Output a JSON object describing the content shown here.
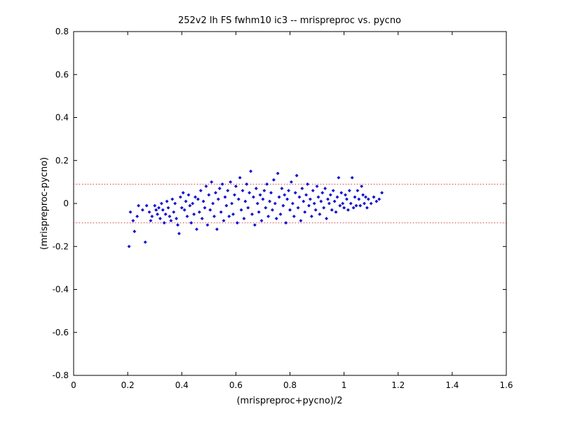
{
  "chart_data": {
    "type": "scatter",
    "title": "252v2 lh FS fwhm10 ic3 -- mrispreproc vs. pycno",
    "xlabel": "(mrispreproc+pycno)/2",
    "ylabel": "(mrispreproc-pycno)",
    "xlim": [
      0,
      1.6
    ],
    "ylim": [
      -0.8,
      0.8
    ],
    "xticks": [
      0,
      0.2,
      0.4,
      0.6,
      0.8,
      1,
      1.2,
      1.4,
      1.6
    ],
    "xtick_labels": [
      "0",
      "0.2",
      "0.4",
      "0.6",
      "0.8",
      "1",
      "1.2",
      "1.4",
      "1.6"
    ],
    "yticks": [
      -0.8,
      -0.6,
      -0.4,
      -0.2,
      0,
      0.2,
      0.4,
      0.6,
      0.8
    ],
    "ytick_labels": [
      "-0.8",
      "-0.6",
      "-0.4",
      "-0.2",
      "0",
      "0.2",
      "0.4",
      "0.6",
      "0.8"
    ],
    "grid": false,
    "legend": "none",
    "point_color": "#0000ff",
    "reference_line_color": "#ff0000",
    "reference_lines": [
      0.09,
      -0.09
    ],
    "points": [
      [
        0.205,
        -0.2
      ],
      [
        0.21,
        -0.04
      ],
      [
        0.22,
        -0.08
      ],
      [
        0.225,
        -0.13
      ],
      [
        0.235,
        -0.06
      ],
      [
        0.24,
        -0.01
      ],
      [
        0.255,
        -0.03
      ],
      [
        0.265,
        -0.18
      ],
      [
        0.27,
        -0.01
      ],
      [
        0.28,
        -0.04
      ],
      [
        0.285,
        -0.08
      ],
      [
        0.29,
        -0.06
      ],
      [
        0.3,
        -0.01
      ],
      [
        0.305,
        -0.03
      ],
      [
        0.31,
        -0.05
      ],
      [
        0.315,
        -0.02
      ],
      [
        0.32,
        -0.07
      ],
      [
        0.325,
        0.0
      ],
      [
        0.33,
        -0.03
      ],
      [
        0.335,
        -0.09
      ],
      [
        0.34,
        -0.05
      ],
      [
        0.345,
        0.01
      ],
      [
        0.35,
        -0.02
      ],
      [
        0.355,
        -0.06
      ],
      [
        0.36,
        -0.08
      ],
      [
        0.365,
        0.02
      ],
      [
        0.37,
        -0.04
      ],
      [
        0.375,
        0.0
      ],
      [
        0.38,
        -0.07
      ],
      [
        0.385,
        -0.1
      ],
      [
        0.39,
        -0.14
      ],
      [
        0.395,
        0.03
      ],
      [
        0.4,
        -0.02
      ],
      [
        0.405,
        0.05
      ],
      [
        0.41,
        -0.03
      ],
      [
        0.415,
        0.01
      ],
      [
        0.42,
        -0.06
      ],
      [
        0.425,
        0.04
      ],
      [
        0.43,
        -0.01
      ],
      [
        0.435,
        -0.09
      ],
      [
        0.44,
        0.0
      ],
      [
        0.445,
        -0.05
      ],
      [
        0.45,
        0.03
      ],
      [
        0.455,
        -0.12
      ],
      [
        0.46,
        0.02
      ],
      [
        0.465,
        -0.04
      ],
      [
        0.47,
        0.06
      ],
      [
        0.475,
        -0.07
      ],
      [
        0.48,
        0.01
      ],
      [
        0.485,
        -0.02
      ],
      [
        0.49,
        0.08
      ],
      [
        0.495,
        -0.1
      ],
      [
        0.5,
        0.04
      ],
      [
        0.505,
        -0.03
      ],
      [
        0.51,
        0.1
      ],
      [
        0.515,
        0.0
      ],
      [
        0.52,
        -0.06
      ],
      [
        0.525,
        0.05
      ],
      [
        0.53,
        -0.12
      ],
      [
        0.535,
        0.02
      ],
      [
        0.54,
        0.07
      ],
      [
        0.545,
        -0.04
      ],
      [
        0.55,
        0.09
      ],
      [
        0.555,
        -0.08
      ],
      [
        0.56,
        0.03
      ],
      [
        0.565,
        -0.01
      ],
      [
        0.57,
        0.06
      ],
      [
        0.575,
        -0.06
      ],
      [
        0.58,
        0.1
      ],
      [
        0.585,
        0.0
      ],
      [
        0.59,
        -0.05
      ],
      [
        0.595,
        0.04
      ],
      [
        0.6,
        0.08
      ],
      [
        0.605,
        -0.09
      ],
      [
        0.61,
        0.02
      ],
      [
        0.615,
        0.12
      ],
      [
        0.62,
        -0.03
      ],
      [
        0.625,
        0.06
      ],
      [
        0.63,
        -0.07
      ],
      [
        0.635,
        0.01
      ],
      [
        0.64,
        0.09
      ],
      [
        0.645,
        -0.02
      ],
      [
        0.65,
        0.05
      ],
      [
        0.655,
        0.15
      ],
      [
        0.66,
        -0.05
      ],
      [
        0.665,
        0.03
      ],
      [
        0.67,
        -0.1
      ],
      [
        0.675,
        0.07
      ],
      [
        0.68,
        0.0
      ],
      [
        0.685,
        -0.04
      ],
      [
        0.69,
        0.04
      ],
      [
        0.695,
        -0.08
      ],
      [
        0.7,
        0.02
      ],
      [
        0.705,
        0.06
      ],
      [
        0.71,
        -0.02
      ],
      [
        0.715,
        0.09
      ],
      [
        0.72,
        -0.06
      ],
      [
        0.725,
        0.01
      ],
      [
        0.73,
        0.05
      ],
      [
        0.735,
        -0.03
      ],
      [
        0.74,
        0.11
      ],
      [
        0.745,
        0.0
      ],
      [
        0.75,
        -0.07
      ],
      [
        0.755,
        0.14
      ],
      [
        0.76,
        0.03
      ],
      [
        0.765,
        -0.05
      ],
      [
        0.77,
        0.07
      ],
      [
        0.775,
        -0.01
      ],
      [
        0.78,
        0.04
      ],
      [
        0.785,
        -0.09
      ],
      [
        0.79,
        0.02
      ],
      [
        0.795,
        0.06
      ],
      [
        0.8,
        -0.03
      ],
      [
        0.805,
        0.1
      ],
      [
        0.81,
        0.0
      ],
      [
        0.815,
        -0.06
      ],
      [
        0.82,
        0.05
      ],
      [
        0.825,
        0.13
      ],
      [
        0.83,
        -0.02
      ],
      [
        0.835,
        0.03
      ],
      [
        0.84,
        -0.08
      ],
      [
        0.845,
        0.07
      ],
      [
        0.85,
        0.01
      ],
      [
        0.855,
        -0.04
      ],
      [
        0.86,
        0.04
      ],
      [
        0.865,
        0.09
      ],
      [
        0.87,
        -0.01
      ],
      [
        0.875,
        0.02
      ],
      [
        0.88,
        -0.06
      ],
      [
        0.885,
        0.06
      ],
      [
        0.89,
        0.0
      ],
      [
        0.895,
        -0.03
      ],
      [
        0.9,
        0.08
      ],
      [
        0.905,
        0.03
      ],
      [
        0.91,
        -0.05
      ],
      [
        0.915,
        0.01
      ],
      [
        0.92,
        0.05
      ],
      [
        0.925,
        -0.02
      ],
      [
        0.93,
        0.07
      ],
      [
        0.935,
        -0.07
      ],
      [
        0.94,
        0.02
      ],
      [
        0.945,
        0.0
      ],
      [
        0.95,
        0.04
      ],
      [
        0.955,
        -0.03
      ],
      [
        0.96,
        0.06
      ],
      [
        0.965,
        0.01
      ],
      [
        0.97,
        -0.04
      ],
      [
        0.975,
        0.03
      ],
      [
        0.98,
        0.12
      ],
      [
        0.985,
        -0.01
      ],
      [
        0.99,
        0.05
      ],
      [
        0.995,
        0.0
      ],
      [
        1.0,
        -0.02
      ],
      [
        1.005,
        0.04
      ],
      [
        1.01,
        0.02
      ],
      [
        1.015,
        -0.03
      ],
      [
        1.02,
        0.06
      ],
      [
        1.025,
        0.0
      ],
      [
        1.03,
        0.12
      ],
      [
        1.035,
        -0.02
      ],
      [
        1.04,
        0.03
      ],
      [
        1.045,
        -0.01
      ],
      [
        1.05,
        0.06
      ],
      [
        1.055,
        0.02
      ],
      [
        1.06,
        -0.01
      ],
      [
        1.065,
        0.08
      ],
      [
        1.07,
        0.04
      ],
      [
        1.075,
        0.0
      ],
      [
        1.08,
        0.03
      ],
      [
        1.085,
        -0.02
      ],
      [
        1.09,
        0.02
      ],
      [
        1.1,
        0.0
      ],
      [
        1.11,
        0.03
      ],
      [
        1.12,
        0.01
      ],
      [
        1.13,
        0.02
      ],
      [
        1.14,
        0.05
      ]
    ]
  }
}
